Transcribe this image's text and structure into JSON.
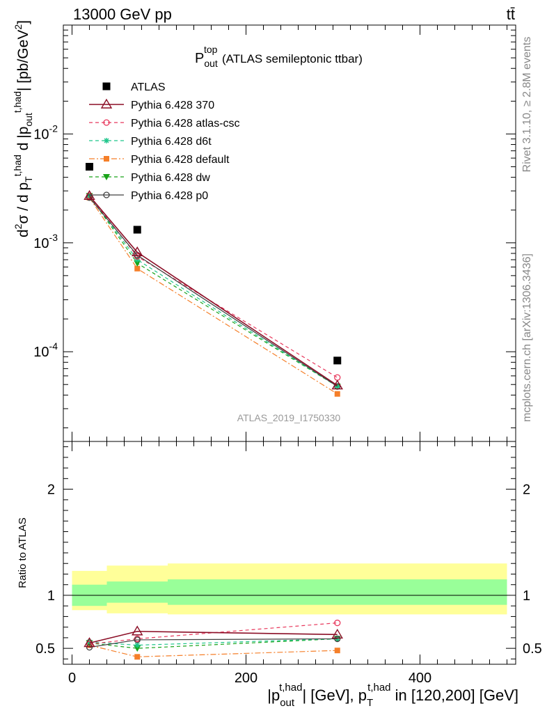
{
  "header": {
    "left": "13000 GeV pp",
    "right": "tt̄"
  },
  "side_labels": {
    "rivet": "Rivet 3.1.10, ≥ 2.8M events",
    "mcplots": "mcplots.cern.ch [arXiv:1306.3436]"
  },
  "plot_title": {
    "main": "P",
    "sup": "top",
    "sub": "out",
    "rest": " (ATLAS semileptonic ttbar)"
  },
  "analysis_label": "ATLAS_2019_I1750330",
  "colors": {
    "atlas": "#000000",
    "p370": "#8b0e26",
    "atlascsc": "#e8385c",
    "d6t": "#1cc58a",
    "default": "#f57f29",
    "dw": "#19a319",
    "p0": "#404040",
    "band_inner": "#99ff99",
    "band_outer": "#ffff99"
  },
  "chart_data": [
    {
      "type": "scatter",
      "panel": "main",
      "ylabel": "d²σ / d pT t,had d |pout t,had| [pb/GeV²]",
      "yscale": "log",
      "ylim": [
        1.5e-05,
        0.1
      ],
      "xlim": [
        -10,
        510
      ],
      "y_ticks": [
        "10^-4",
        "10^-3",
        "10^-2"
      ],
      "x": [
        20,
        75,
        305
      ],
      "series": [
        {
          "name": "ATLAS",
          "style": "data",
          "values": [
            0.005,
            0.00132,
            8.3e-05
          ]
        },
        {
          "name": "Pythia 6.428 370",
          "style": "solid-triangle",
          "values": [
            0.0027,
            0.00082,
            4.9e-05
          ]
        },
        {
          "name": "Pythia 6.428 atlas-csc",
          "style": "dash-circle",
          "values": [
            0.0027,
            0.00075,
            5.8e-05
          ]
        },
        {
          "name": "Pythia 6.428 d6t",
          "style": "dash-star",
          "values": [
            0.0027,
            0.0007,
            4.8e-05
          ]
        },
        {
          "name": "Pythia 6.428 default",
          "style": "dashdot-square",
          "values": [
            0.0026,
            0.00058,
            4.1e-05
          ]
        },
        {
          "name": "Pythia 6.428 dw",
          "style": "dash-triangle-down",
          "values": [
            0.0027,
            0.00065,
            4.8e-05
          ]
        },
        {
          "name": "Pythia 6.428 p0",
          "style": "solid-circle",
          "values": [
            0.0026,
            0.00077,
            4.8e-05
          ]
        }
      ]
    },
    {
      "type": "line",
      "panel": "ratio",
      "ylabel": "Ratio to ATLAS",
      "xlabel": "|pout t,had| [GeV], pT t,had in [120,200] [GeV]",
      "ylim": [
        0.35,
        2.45
      ],
      "xlim": [
        -10,
        510
      ],
      "y_ticks": [
        "0.5",
        "1",
        "2"
      ],
      "x_ticks": [
        "0",
        "200",
        "400"
      ],
      "x": [
        20,
        75,
        305
      ],
      "bands": [
        {
          "x_from": 0,
          "x_to": 40,
          "inner": [
            0.9,
            1.1
          ],
          "outer": [
            0.86,
            1.23
          ]
        },
        {
          "x_from": 40,
          "x_to": 110,
          "inner": [
            0.93,
            1.13
          ],
          "outer": [
            0.83,
            1.28
          ]
        },
        {
          "x_from": 110,
          "x_to": 500,
          "inner": [
            0.91,
            1.15
          ],
          "outer": [
            0.82,
            1.3
          ]
        }
      ],
      "series": [
        {
          "name": "Pythia 6.428 370",
          "values": [
            0.55,
            0.66,
            0.63
          ]
        },
        {
          "name": "Pythia 6.428 atlas-csc",
          "values": [
            0.54,
            0.59,
            0.74
          ]
        },
        {
          "name": "Pythia 6.428 d6t",
          "values": [
            0.56,
            0.53,
            0.59
          ]
        },
        {
          "name": "Pythia 6.428 default",
          "values": [
            0.53,
            0.42,
            0.48
          ]
        },
        {
          "name": "Pythia 6.428 dw",
          "values": [
            0.55,
            0.5,
            0.59
          ]
        },
        {
          "name": "Pythia 6.428 p0",
          "values": [
            0.51,
            0.58,
            0.59
          ]
        }
      ]
    }
  ]
}
